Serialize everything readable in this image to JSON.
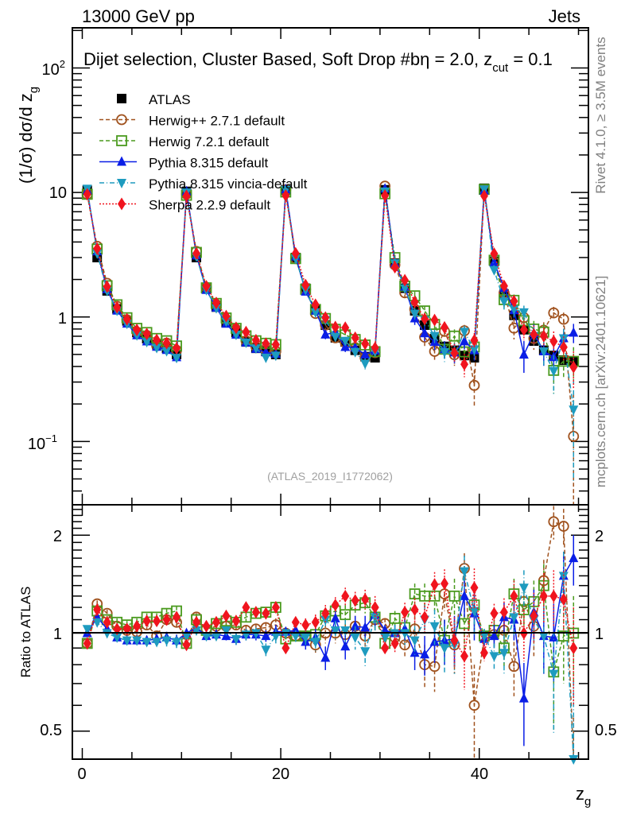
{
  "chart_data": [
    {
      "type": "scatter",
      "panel": "main",
      "title_left": "13000 GeV pp",
      "title_right": "Jets",
      "annotation": "Dijet selection, Cluster Based, Soft Drop #b",
      "annotation_params": "η = 2.0, z",
      "annotation_sub": "cut",
      "annotation_tail": " = 0.1",
      "ylabel": "(1/σ) dσ/d z",
      "ylabel_sub": "g",
      "yscale": "log",
      "ylim": [
        0.031,
        210
      ],
      "xlim": [
        -1,
        51
      ],
      "ytick_labels": [
        {
          "value": 100,
          "base": "10",
          "exp": "2"
        },
        {
          "value": 10,
          "base": "10",
          "exp": ""
        },
        {
          "value": 1,
          "base": "1",
          "exp": ""
        },
        {
          "value": 0.1,
          "base": "10",
          "exp": "−1"
        }
      ],
      "watermark": "(ATLAS_2019_I1772062)",
      "side_label_top": "Rivet 4.1.0, ≥ 3.5M events",
      "side_label_bottom": "mcplots.cern.ch [arXiv:2401.10621]",
      "legend_position": "top-left",
      "x": [
        0.5,
        1.5,
        2.5,
        3.5,
        4.5,
        5.5,
        6.5,
        7.5,
        8.5,
        9.5,
        10.5,
        11.5,
        12.5,
        13.5,
        14.5,
        15.5,
        16.5,
        17.5,
        18.5,
        19.5,
        20.5,
        21.5,
        22.5,
        23.5,
        24.5,
        25.5,
        26.5,
        27.5,
        28.5,
        29.5,
        30.5,
        31.5,
        32.5,
        33.5,
        34.5,
        35.5,
        36.5,
        37.5,
        38.5,
        39.5,
        40.5,
        41.5,
        42.5,
        43.5,
        44.5,
        45.5,
        46.5,
        47.5,
        48.5,
        49.5
      ],
      "data": {
        "name": "ATLAS",
        "values": [
          10.4,
          3.0,
          1.62,
          1.16,
          0.93,
          0.75,
          0.67,
          0.6,
          0.56,
          0.5,
          10.2,
          3.0,
          1.68,
          1.2,
          0.9,
          0.75,
          0.63,
          0.56,
          0.53,
          0.5,
          10.5,
          3.0,
          1.7,
          1.16,
          0.86,
          0.68,
          0.63,
          0.54,
          0.48,
          0.47,
          10.5,
          2.7,
          1.7,
          1.12,
          0.86,
          0.67,
          0.58,
          0.54,
          0.49,
          0.47,
          10.8,
          2.8,
          1.53,
          1.03,
          0.79,
          0.64,
          0.54,
          0.49,
          0.45,
          0.44
        ]
      }
    },
    {
      "type": "line",
      "panel": "ratio",
      "ylabel": "Ratio to ATLAS",
      "xlabel": "z",
      "xlabel_sub": "g",
      "yscale": "log",
      "ylim": [
        0.41,
        2.48
      ],
      "xlim": [
        -1,
        51
      ],
      "ytick_labels": [
        {
          "value": 2,
          "label": "2"
        },
        {
          "value": 1,
          "label": "1"
        },
        {
          "value": 0.5,
          "label": "0.5"
        }
      ],
      "xtick_labels": [
        {
          "value": 0,
          "label": "0"
        },
        {
          "value": 20,
          "label": "20"
        },
        {
          "value": 40,
          "label": "40"
        }
      ],
      "series": [
        {
          "name": "Herwig++ 2.7.1 default",
          "color": "#a0521e",
          "marker": "open-circle",
          "dash": "dashed",
          "ratio": [
            0.93,
            1.23,
            1.15,
            1.05,
            1.02,
            1.01,
            1.06,
            0.98,
            1.1,
            1.08,
            0.95,
            1.12,
            1.03,
            1.05,
            1.05,
            1.06,
            1.02,
            1.03,
            1.04,
            1.06,
            1.0,
            0.98,
            0.98,
            0.92,
            1.0,
            1.0,
            0.99,
            1.05,
            0.98,
            1.1,
            1.07,
            0.97,
            0.92,
            1.03,
            0.8,
            0.79,
            1.32,
            0.92,
            1.58,
            0.6,
            0.97,
            0.99,
            1.02,
            0.79,
            1.25,
            1.05,
            1.45,
            2.2,
            2.13,
            0.25
          ],
          "err": [
            0.02,
            0.03,
            0.03,
            0.03,
            0.03,
            0.03,
            0.03,
            0.03,
            0.04,
            0.04,
            0.02,
            0.03,
            0.03,
            0.03,
            0.03,
            0.04,
            0.04,
            0.04,
            0.04,
            0.05,
            0.03,
            0.04,
            0.05,
            0.06,
            0.07,
            0.07,
            0.08,
            0.08,
            0.09,
            0.1,
            0.04,
            0.06,
            0.08,
            0.1,
            0.12,
            0.13,
            0.15,
            0.17,
            0.18,
            0.2,
            0.05,
            0.08,
            0.12,
            0.15,
            0.18,
            0.2,
            0.23,
            0.26,
            0.28,
            0.3
          ]
        },
        {
          "name": "Herwig 7.2.1 default",
          "color": "#4a9a1e",
          "marker": "open-square",
          "dash": "dashed",
          "ratio": [
            0.93,
            1.17,
            1.1,
            1.08,
            1.06,
            1.08,
            1.12,
            1.12,
            1.15,
            1.17,
            0.93,
            1.1,
            1.02,
            1.07,
            1.09,
            1.08,
            1.12,
            1.15,
            1.16,
            1.2,
            0.96,
            0.98,
            0.98,
            0.99,
            1.13,
            1.17,
            1.14,
            1.22,
            1.24,
            1.12,
            0.93,
            1.11,
            1.04,
            1.32,
            1.3,
            1.3,
            0.95,
            1.3,
            1.07,
            1.22,
            0.98,
            1.02,
            0.9,
            1.32,
            1.18,
            1.25,
            1.4,
            0.76,
            0.98,
            1.0
          ],
          "err": [
            0.02,
            0.03,
            0.03,
            0.03,
            0.03,
            0.03,
            0.03,
            0.03,
            0.04,
            0.04,
            0.02,
            0.03,
            0.03,
            0.03,
            0.03,
            0.04,
            0.04,
            0.04,
            0.04,
            0.05,
            0.03,
            0.04,
            0.05,
            0.06,
            0.07,
            0.07,
            0.08,
            0.08,
            0.09,
            0.1,
            0.04,
            0.06,
            0.08,
            0.1,
            0.12,
            0.13,
            0.15,
            0.17,
            0.18,
            0.2,
            0.05,
            0.08,
            0.12,
            0.15,
            0.18,
            0.2,
            0.23,
            0.26,
            0.28,
            0.3
          ]
        },
        {
          "name": "Pythia 8.315 default",
          "color": "#0a1ee6",
          "marker": "filled-triangle-up",
          "dash": "solid",
          "ratio": [
            1.0,
            1.12,
            1.03,
            0.97,
            0.95,
            0.95,
            0.95,
            0.96,
            0.97,
            0.95,
            1.0,
            1.04,
            0.98,
            0.99,
            0.98,
            0.96,
            0.99,
            0.99,
            0.98,
            1.01,
            1.01,
            1.02,
            0.94,
            0.97,
            0.84,
            1.11,
            0.91,
            1.05,
            1.04,
            1.14,
            1.02,
            1.0,
            1.03,
            0.87,
            0.86,
            0.94,
            0.95,
            0.96,
            1.3,
            1.15,
            0.96,
            0.98,
            1.12,
            1.1,
            0.63,
            1.16,
            0.98,
            0.97,
            1.5,
            1.7
          ],
          "err": [
            0.02,
            0.03,
            0.03,
            0.03,
            0.03,
            0.03,
            0.03,
            0.03,
            0.04,
            0.04,
            0.02,
            0.03,
            0.03,
            0.03,
            0.03,
            0.04,
            0.04,
            0.04,
            0.04,
            0.05,
            0.03,
            0.04,
            0.05,
            0.06,
            0.07,
            0.07,
            0.08,
            0.08,
            0.09,
            0.1,
            0.04,
            0.06,
            0.08,
            0.1,
            0.12,
            0.13,
            0.15,
            0.17,
            0.18,
            0.2,
            0.05,
            0.08,
            0.12,
            0.15,
            0.18,
            0.2,
            0.23,
            0.26,
            0.28,
            0.3
          ]
        },
        {
          "name": "Pythia 8.315 vincia-default",
          "color": "#1e9bbf",
          "marker": "filled-triangle-down",
          "dash": "dashdot",
          "ratio": [
            1.03,
            1.08,
            1.0,
            0.97,
            0.95,
            0.95,
            0.94,
            0.94,
            0.95,
            0.94,
            0.98,
            1.02,
            0.98,
            0.98,
            1.02,
            0.96,
            0.99,
            1.0,
            0.89,
            0.98,
            1.0,
            0.98,
            0.97,
            0.94,
            1.1,
            1.02,
            1.02,
            0.97,
            0.88,
            1.12,
            0.97,
            1.0,
            1.0,
            0.95,
            1.1,
            1.05,
            0.9,
            0.92,
            1.55,
            1.17,
            0.98,
            0.85,
            0.87,
            1.12,
            1.38,
            1.1,
            0.98,
            0.75,
            1.5,
            0.41
          ],
          "err": [
            0.02,
            0.03,
            0.03,
            0.03,
            0.03,
            0.03,
            0.03,
            0.03,
            0.04,
            0.04,
            0.02,
            0.03,
            0.03,
            0.03,
            0.03,
            0.04,
            0.04,
            0.04,
            0.04,
            0.05,
            0.03,
            0.04,
            0.05,
            0.06,
            0.07,
            0.07,
            0.08,
            0.08,
            0.09,
            0.1,
            0.04,
            0.06,
            0.08,
            0.1,
            0.12,
            0.13,
            0.15,
            0.17,
            0.18,
            0.2,
            0.05,
            0.08,
            0.12,
            0.15,
            0.18,
            0.2,
            0.23,
            0.26,
            0.28,
            0.3
          ]
        },
        {
          "name": "Sherpa 2.2.9 default",
          "color": "#f0141e",
          "marker": "filled-diamond",
          "dash": "dotted",
          "ratio": [
            0.93,
            1.18,
            1.08,
            1.03,
            1.03,
            1.05,
            1.09,
            1.09,
            1.1,
            1.12,
            0.92,
            1.08,
            1.05,
            1.08,
            1.13,
            1.09,
            1.2,
            1.16,
            1.15,
            1.2,
            0.9,
            1.08,
            1.06,
            1.08,
            1.15,
            1.22,
            1.3,
            1.26,
            1.27,
            1.2,
            0.9,
            0.93,
            1.16,
            1.18,
            1.12,
            1.41,
            1.42,
            0.95,
            0.85,
            1.38,
            0.87,
            1.15,
            1.16,
            1.3,
            1.0,
            1.13,
            1.3,
            1.3,
            1.27,
            0.9
          ],
          "err": [
            0.02,
            0.03,
            0.03,
            0.03,
            0.03,
            0.03,
            0.03,
            0.03,
            0.04,
            0.04,
            0.02,
            0.03,
            0.03,
            0.03,
            0.03,
            0.04,
            0.04,
            0.04,
            0.04,
            0.05,
            0.03,
            0.04,
            0.05,
            0.06,
            0.07,
            0.07,
            0.08,
            0.08,
            0.09,
            0.1,
            0.04,
            0.06,
            0.08,
            0.1,
            0.12,
            0.13,
            0.15,
            0.17,
            0.18,
            0.2,
            0.05,
            0.08,
            0.12,
            0.15,
            0.18,
            0.2,
            0.23,
            0.26,
            0.28,
            0.3
          ]
        }
      ]
    }
  ],
  "legend": [
    {
      "label": "ATLAS",
      "marker": "filled-square",
      "color": "#000000",
      "dash": "none"
    },
    {
      "label": "Herwig++ 2.7.1 default",
      "marker": "open-circle",
      "color": "#a0521e",
      "dash": "dashed"
    },
    {
      "label": "Herwig 7.2.1 default",
      "marker": "open-square",
      "color": "#4a9a1e",
      "dash": "dashed"
    },
    {
      "label": "Pythia 8.315 default",
      "marker": "filled-triangle-up",
      "color": "#0a1ee6",
      "dash": "solid"
    },
    {
      "label": "Pythia 8.315 vincia-default",
      "marker": "filled-triangle-down",
      "color": "#1e9bbf",
      "dash": "dashdot"
    },
    {
      "label": "Sherpa 2.2.9 default",
      "marker": "filled-diamond",
      "color": "#f0141e",
      "dash": "dotted"
    }
  ]
}
